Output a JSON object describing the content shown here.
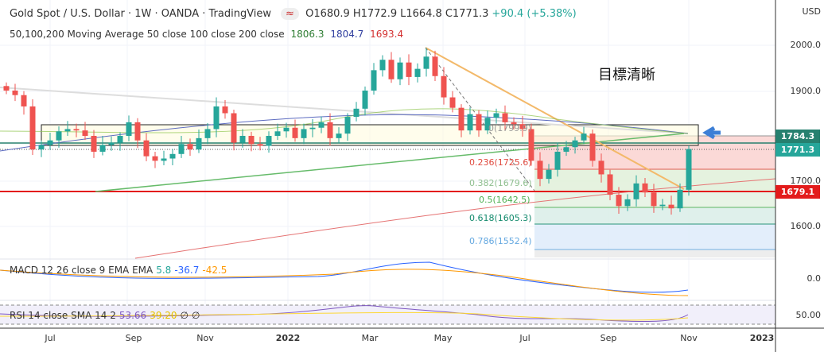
{
  "header": {
    "title": "Gold Spot / U.S. Dollar · 1W · OANDA · TradingView",
    "ohlc": {
      "o": "O1680.9",
      "h": "H1772.9",
      "l": "L1664.8",
      "c": "C1771.3",
      "chg": "+90.4 (+5.38%)"
    },
    "indicator_icon": "≈"
  },
  "ma_legend": {
    "label": "50,100,200 Moving Average 50 close 100 close 200 close",
    "v50": "1806.3",
    "v100": "1804.7",
    "v200": "1693.4"
  },
  "currency": "USD",
  "annotation": "目標清晰",
  "price_ticks": [
    "2000.0",
    "1900.0",
    "1700.0",
    "1600.0"
  ],
  "price_tags": [
    {
      "value": "1784.3",
      "color": "#26806f"
    },
    {
      "value": "1771.3",
      "color": "#26a69a"
    },
    {
      "value": "1679.1",
      "color": "#e31b1b"
    }
  ],
  "fib": [
    {
      "label": "0(1799.9)",
      "color": "#999"
    },
    {
      "label": "0.236(1725.6)",
      "color": "#e04a3f"
    },
    {
      "label": "0.382(1679.6)",
      "color": "#8fbf8f"
    },
    {
      "label": "0.5(1642.5)",
      "color": "#4caf50"
    },
    {
      "label": "0.618(1605.3)",
      "color": "#138a6c"
    },
    {
      "label": "0.786(1552.4)",
      "color": "#64a8e0"
    }
  ],
  "macd": {
    "label": "MACD 12 26 close 9 EMA EMA",
    "hist": "5.8",
    "macd": "-36.7",
    "signal": "-42.5",
    "tick": "0.0"
  },
  "rsi": {
    "label": "RSI 14 close SMA 14 2",
    "rsi": "53.66",
    "sma": "39.20",
    "x1": "∅",
    "x2": "∅",
    "tick": "50.00"
  },
  "time_labels": [
    "Jul",
    "Sep",
    "Nov",
    "2022",
    "Mar",
    "May",
    "Jul",
    "Sep",
    "Nov",
    "2023"
  ],
  "chart_data": {
    "type": "candlestick",
    "title": "Gold Spot / U.S. Dollar 1W",
    "ylim": [
      1520,
      2050
    ],
    "closes": [
      1900,
      1890,
      1865,
      1770,
      1780,
      1790,
      1810,
      1815,
      1812,
      1800,
      1765,
      1780,
      1785,
      1800,
      1830,
      1790,
      1755,
      1745,
      1750,
      1760,
      1782,
      1770,
      1795,
      1815,
      1865,
      1850,
      1785,
      1800,
      1782,
      1778,
      1800,
      1810,
      1818,
      1795,
      1815,
      1818,
      1830,
      1795,
      1805,
      1842,
      1860,
      1900,
      1945,
      1968,
      1925,
      1962,
      1930,
      1948,
      1975,
      1932,
      1885,
      1862,
      1812,
      1848,
      1812,
      1840,
      1850,
      1830,
      1826,
      1815,
      1745,
      1705,
      1725,
      1765,
      1775,
      1790,
      1805,
      1745,
      1715,
      1670,
      1645,
      1660,
      1695,
      1675,
      1645,
      1648,
      1640,
      1681,
      1771
    ],
    "fib_levels": [
      1799.9,
      1725.6,
      1679.6,
      1642.5,
      1605.3,
      1552.4
    ]
  }
}
